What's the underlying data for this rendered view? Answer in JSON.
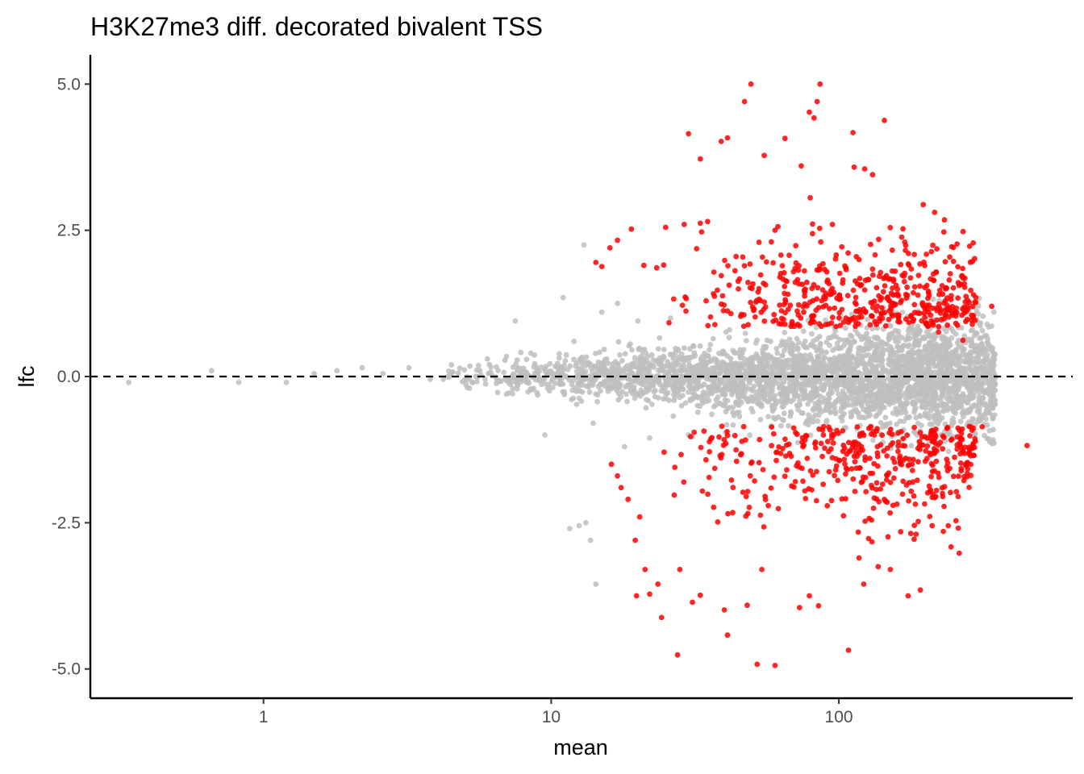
{
  "chart_data": {
    "type": "scatter",
    "title": "H3K27me3 diff. decorated bivalent TSS",
    "xlabel": "mean",
    "ylabel": "lfc",
    "x_scale": "log10",
    "xlim": [
      0.25,
      650
    ],
    "ylim": [
      -5.5,
      5.5
    ],
    "x_ticks": [
      1,
      10,
      100
    ],
    "x_tick_labels": [
      "1",
      "10",
      "100"
    ],
    "y_ticks": [
      -5,
      -2.5,
      0,
      2.5,
      5
    ],
    "y_tick_labels": [
      "-5.0",
      "-2.5",
      "0.0",
      "2.5",
      "5.0"
    ],
    "grid": false,
    "legend": "none",
    "reference_line": {
      "y": 0,
      "style": "dashed",
      "color": "#000000"
    },
    "colors": {
      "significant": "#ff0000",
      "not_significant": "#bebebe"
    },
    "series": [
      {
        "status": "not_significant",
        "points": [
          [
            0.34,
            -0.1
          ],
          [
            0.66,
            0.1
          ],
          [
            0.82,
            -0.1
          ],
          [
            1.2,
            -0.1
          ],
          [
            1.5,
            0.05
          ],
          [
            1.8,
            0.1
          ],
          [
            2.2,
            0.15
          ],
          [
            2.6,
            0.05
          ],
          [
            3.2,
            0.15
          ],
          [
            3.8,
            -0.05
          ],
          [
            4.5,
            0.2
          ],
          [
            5.2,
            -0.2
          ],
          [
            6.0,
            0.3
          ],
          [
            7.0,
            -0.3
          ],
          [
            7.5,
            0.95
          ],
          [
            8.5,
            0.4
          ],
          [
            9.5,
            -1.0
          ],
          [
            11,
            1.35
          ],
          [
            12,
            0.6
          ],
          [
            13,
            2.25
          ],
          [
            14,
            -0.8
          ],
          [
            15,
            1.1
          ],
          [
            12.5,
            -2.55
          ],
          [
            13.2,
            -2.5
          ],
          [
            13.7,
            -2.8
          ],
          [
            14.3,
            -3.55
          ],
          [
            11.6,
            -2.6
          ],
          [
            17,
            1.25
          ],
          [
            18,
            -1.2
          ],
          [
            20,
            0.95
          ],
          [
            22,
            -1.05
          ],
          [
            26,
            1.0
          ],
          [
            30,
            -1.0
          ]
        ]
      },
      {
        "status": "significant",
        "points": [
          [
            49.5,
            5.0
          ],
          [
            86,
            5.0
          ],
          [
            47,
            4.7
          ],
          [
            84,
            4.7
          ],
          [
            79,
            4.52
          ],
          [
            82,
            4.42
          ],
          [
            144,
            4.38
          ],
          [
            30,
            4.15
          ],
          [
            112,
            4.17
          ],
          [
            41,
            4.08
          ],
          [
            39,
            4.02
          ],
          [
            65,
            4.07
          ],
          [
            33,
            3.72
          ],
          [
            55,
            3.78
          ],
          [
            74,
            3.6
          ],
          [
            113,
            3.58
          ],
          [
            123,
            3.55
          ],
          [
            131,
            3.45
          ],
          [
            19,
            2.52
          ],
          [
            17,
            2.33
          ],
          [
            16,
            2.2
          ],
          [
            14.3,
            1.95
          ],
          [
            15,
            1.88
          ],
          [
            21,
            1.9
          ],
          [
            25,
            2.55
          ],
          [
            29,
            2.6
          ],
          [
            33,
            2.62
          ],
          [
            35,
            2.65
          ],
          [
            60,
            2.5
          ],
          [
            95,
            2.6
          ],
          [
            157,
            1.8
          ],
          [
            197,
            1.2
          ],
          [
            212,
            0.92
          ],
          [
            213,
            0.88
          ],
          [
            222,
            0.76
          ],
          [
            255,
            0.91
          ],
          [
            270,
            0.62
          ],
          [
            340,
            1.2
          ],
          [
            16.2,
            -1.5
          ],
          [
            17,
            -1.7
          ],
          [
            17.5,
            -1.9
          ],
          [
            18.5,
            -2.1
          ],
          [
            19.6,
            -2.8
          ],
          [
            20.3,
            -2.4
          ],
          [
            21.2,
            -3.3
          ],
          [
            19.8,
            -3.75
          ],
          [
            22,
            -3.72
          ],
          [
            23.5,
            -3.55
          ],
          [
            24.2,
            -4.12
          ],
          [
            27.5,
            -4.76
          ],
          [
            28,
            -3.3
          ],
          [
            31,
            -3.86
          ],
          [
            33,
            -3.74
          ],
          [
            40,
            -3.99
          ],
          [
            41,
            -4.42
          ],
          [
            48,
            -3.91
          ],
          [
            52,
            -4.92
          ],
          [
            54,
            -3.3
          ],
          [
            60,
            -4.94
          ],
          [
            73,
            -3.95
          ],
          [
            79,
            -3.75
          ],
          [
            85,
            -3.92
          ],
          [
            108,
            -4.68
          ],
          [
            122,
            -3.55
          ],
          [
            137,
            -3.25
          ],
          [
            151,
            -3.3
          ],
          [
            174,
            -3.75
          ],
          [
            192,
            -3.65
          ],
          [
            211,
            -2.55
          ],
          [
            240,
            -2.55
          ],
          [
            262,
            -3.02
          ],
          [
            451,
            -1.18
          ],
          [
            315,
            -0.86
          ],
          [
            256,
            -1.97
          ]
        ]
      }
    ],
    "bulk_clouds": [
      {
        "status": "not_significant",
        "count": 3300,
        "x_range": [
          4,
          350
        ],
        "lfc_spread": [
          0.14,
          1.0
        ]
      },
      {
        "status": "significant",
        "count": 900,
        "x_range": [
          22,
          300
        ],
        "lfc_range": [
          0.85,
          3.5
        ]
      }
    ]
  }
}
